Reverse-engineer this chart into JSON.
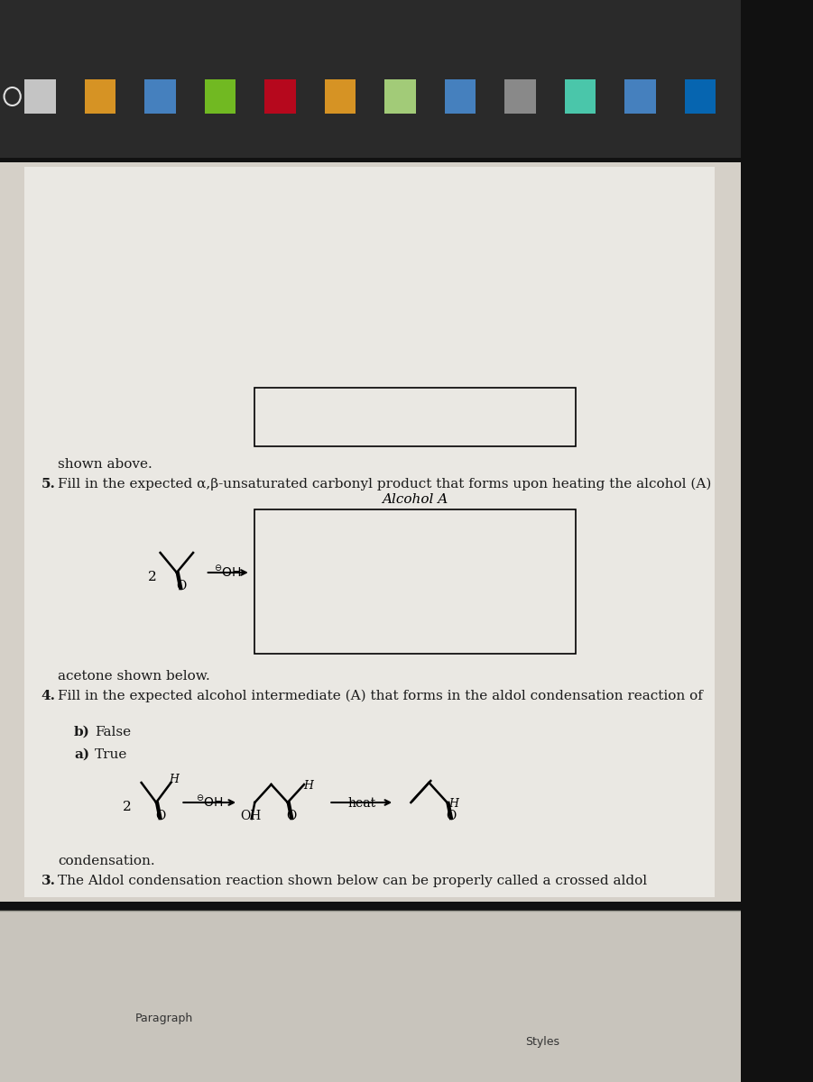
{
  "bg_top": "#1a1a1a",
  "bg_page": "#d8d4cc",
  "page_white": "#f0eeea",
  "toolbar_text_color": "#333333",
  "text_color": "#1a1a1a",
  "q3_text": "3.  The Aldol condensation reaction shown below can be properly called a crossed aldol\n    condensation.",
  "q3_a": "a)  True",
  "q3_b": "b)  False",
  "q4_text": "4.  Fill in the expected alcohol intermediate (A) that forms in the aldol condensation reaction of\n    acetone shown below.",
  "q5_text": "5.  Fill in the expected α,β-unsaturated carbonyl product that forms upon heating the alcohol (A)\n    shown above.",
  "alcohol_label": "Alcohol A",
  "styles_label": "Styles",
  "paragraph_label": "Paragraph"
}
